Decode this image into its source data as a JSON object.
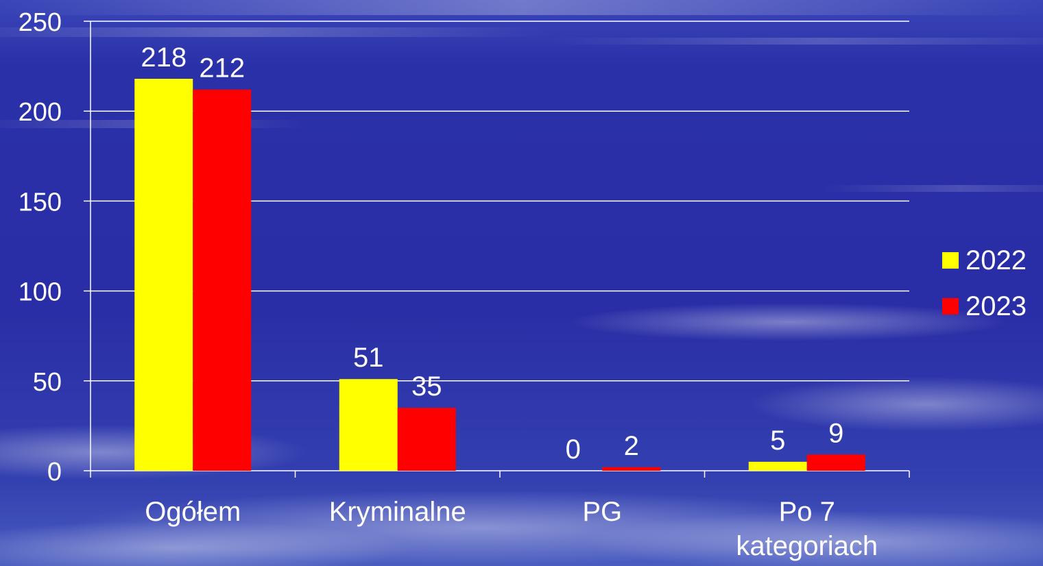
{
  "chart_data": {
    "type": "bar",
    "categories": [
      "Ogółem",
      "Kryminalne",
      "PG",
      "Po 7 kategoriach"
    ],
    "series": [
      {
        "name": "2022",
        "values": [
          218,
          51,
          0,
          5
        ],
        "color": "#ffff00"
      },
      {
        "name": "2023",
        "values": [
          212,
          35,
          2,
          9
        ],
        "color": "#ff0000"
      }
    ],
    "ylim": [
      0,
      250
    ],
    "yticks": [
      0,
      50,
      100,
      150,
      200,
      250
    ],
    "grid": true,
    "legend_position": "right",
    "title": "",
    "xlabel": "",
    "ylabel": ""
  },
  "colors": {
    "background": "#2a2fa8",
    "grid": "#ffffff",
    "text": "#ffffff"
  }
}
